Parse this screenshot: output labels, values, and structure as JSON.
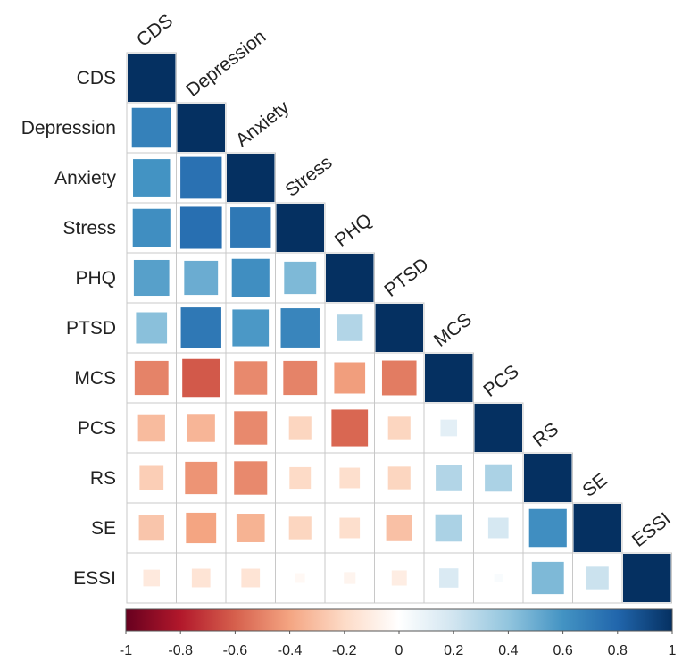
{
  "chart_data": {
    "type": "heatmap",
    "subtype": "correlation-matrix-lower-triangle",
    "variables": [
      "CDS",
      "Depression",
      "Anxiety",
      "Stress",
      "PHQ",
      "PTSD",
      "MCS",
      "PCS",
      "RS",
      "SE",
      "ESSI"
    ],
    "matrix": [
      [
        1,
        null,
        null,
        null,
        null,
        null,
        null,
        null,
        null,
        null,
        null
      ],
      [
        0.68,
        1,
        null,
        null,
        null,
        null,
        null,
        null,
        null,
        null,
        null
      ],
      [
        0.6,
        0.75,
        1,
        null,
        null,
        null,
        null,
        null,
        null,
        null,
        null
      ],
      [
        0.62,
        0.76,
        0.72,
        1,
        null,
        null,
        null,
        null,
        null,
        null,
        null
      ],
      [
        0.55,
        0.5,
        0.62,
        0.45,
        1,
        null,
        null,
        null,
        null,
        null,
        null
      ],
      [
        0.42,
        0.72,
        0.58,
        0.66,
        0.3,
        1,
        null,
        null,
        null,
        null,
        null
      ],
      [
        -0.5,
        -0.62,
        -0.48,
        -0.5,
        -0.42,
        -0.52,
        1,
        null,
        null,
        null,
        null
      ],
      [
        -0.32,
        -0.34,
        -0.48,
        -0.22,
        -0.58,
        -0.22,
        0.12,
        1,
        null,
        null,
        null
      ],
      [
        -0.25,
        -0.45,
        -0.48,
        -0.2,
        -0.18,
        -0.22,
        0.3,
        0.32,
        1,
        null,
        null
      ],
      [
        -0.28,
        -0.4,
        -0.35,
        -0.22,
        -0.18,
        -0.3,
        0.32,
        0.18,
        0.62,
        1,
        null
      ],
      [
        -0.12,
        -0.15,
        -0.15,
        -0.04,
        -0.06,
        -0.1,
        0.16,
        0.03,
        0.45,
        0.22,
        1
      ]
    ],
    "color_scale": {
      "min": -1,
      "max": 1,
      "stops": [
        "#67001F",
        "#B2182B",
        "#D6604D",
        "#F4A582",
        "#FDDBC7",
        "#FFFFFF",
        "#D1E5F0",
        "#92C5DE",
        "#4393C3",
        "#2166AC",
        "#053061"
      ],
      "ticks": [
        "-1",
        "-0.8",
        "-0.6",
        "-0.4",
        "-0.2",
        "0",
        "0.2",
        "0.4",
        "0.6",
        "0.8",
        "1"
      ]
    },
    "title": "",
    "grid": true,
    "legend_placement": "bottom"
  }
}
